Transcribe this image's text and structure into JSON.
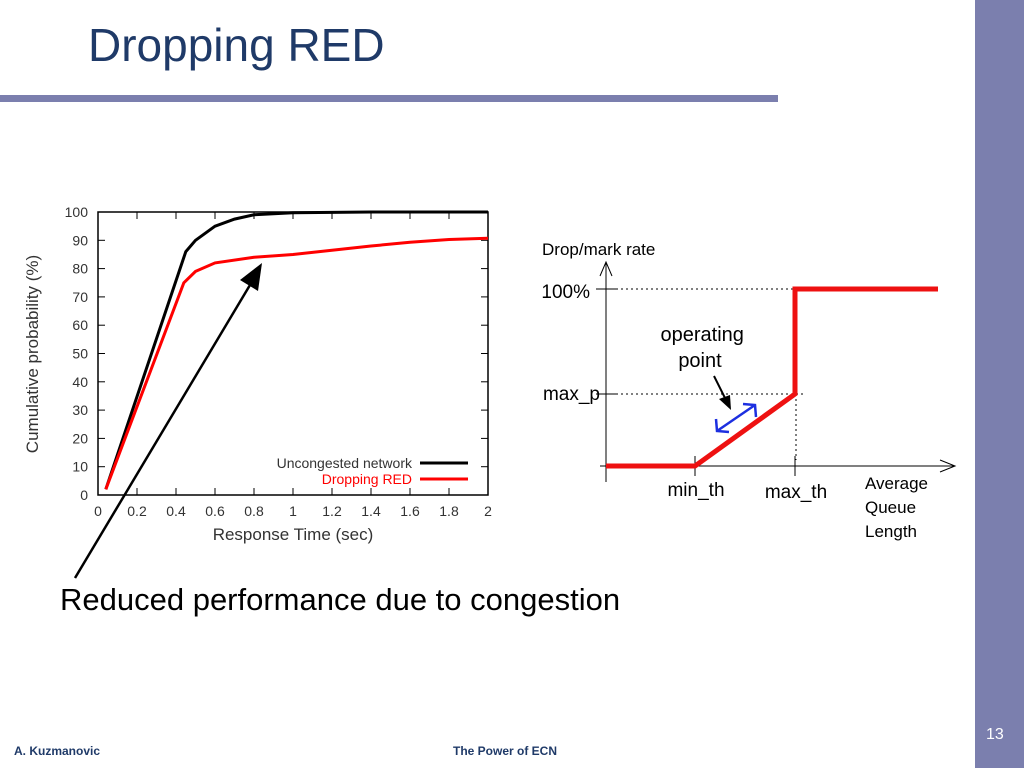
{
  "slide": {
    "title": "Dropping RED",
    "caption": "Reduced performance due to congestion",
    "footer_author": "A. Kuzmanovic",
    "footer_title": "The Power of ECN",
    "page_number": "13"
  },
  "chart_data": [
    {
      "type": "line",
      "xlabel": "Response Time (sec)",
      "ylabel": "Cumulative probability (%)",
      "xlim": [
        0,
        2
      ],
      "ylim": [
        0,
        100
      ],
      "xticks": [
        "0",
        "0.2",
        "0.4",
        "0.6",
        "0.8",
        "1",
        "1.2",
        "1.4",
        "1.6",
        "1.8",
        "2"
      ],
      "yticks": [
        "0",
        "10",
        "20",
        "30",
        "40",
        "50",
        "60",
        "70",
        "80",
        "90",
        "100"
      ],
      "legend_position": "bottom-right",
      "series": [
        {
          "name": "Uncongested network",
          "color": "#000000",
          "points": [
            [
              0.04,
              2
            ],
            [
              0.45,
              86
            ],
            [
              0.5,
              90
            ],
            [
              0.6,
              95
            ],
            [
              0.7,
              97.5
            ],
            [
              0.8,
              99
            ],
            [
              1.0,
              99.7
            ],
            [
              1.4,
              100
            ],
            [
              2.0,
              100
            ]
          ]
        },
        {
          "name": "Dropping RED",
          "color": "#ff0000",
          "points": [
            [
              0.04,
              2
            ],
            [
              0.44,
              75
            ],
            [
              0.5,
              79
            ],
            [
              0.6,
              82
            ],
            [
              0.8,
              84
            ],
            [
              1.0,
              85
            ],
            [
              1.2,
              86.5
            ],
            [
              1.4,
              88
            ],
            [
              1.6,
              89.3
            ],
            [
              1.8,
              90.3
            ],
            [
              2.0,
              90.7
            ]
          ]
        }
      ]
    }
  ],
  "red_diagram": {
    "y_axis_label": "Drop/mark rate",
    "label_100": "100%",
    "label_max_p": "max_p",
    "label_min_th": "min_th",
    "label_max_th": "max_th",
    "x_axis_label_lines": [
      "Average",
      "Queue",
      "Length"
    ],
    "operating_point_lines": [
      "operating",
      "point"
    ],
    "curve_color": "#ee1111",
    "double_arrow_color": "#1c2fe0"
  }
}
